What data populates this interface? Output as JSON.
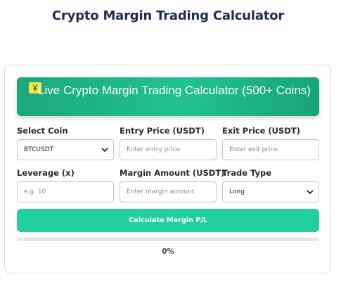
{
  "page": {
    "title": "Crypto Margin Trading Calculator"
  },
  "banner": {
    "icon": "yen-banknote-icon",
    "text": "Live Crypto Margin Trading Calculator (500+ Coins)"
  },
  "form": {
    "select_coin": {
      "label": "Select Coin",
      "value": "BTCUSDT"
    },
    "entry_price": {
      "label": "Entry Price (USDT)",
      "placeholder": "Enter entry price"
    },
    "exit_price": {
      "label": "Exit Price (USDT)",
      "placeholder": "Enter exit price"
    },
    "leverage": {
      "label": "Leverage (x)",
      "placeholder": "e.g. 10"
    },
    "margin_amount": {
      "label": "Margin Amount (USDT)",
      "placeholder": "Enter margin amount"
    },
    "trade_type": {
      "label": "Trade Type",
      "value": "Long"
    }
  },
  "actions": {
    "calculate_label": "Calculate Margin P/L"
  },
  "progress": {
    "value": 0,
    "text": "0%"
  },
  "colors": {
    "title": "#1f2d4d",
    "banner": "#1fb586",
    "button": "#21cf9f"
  }
}
